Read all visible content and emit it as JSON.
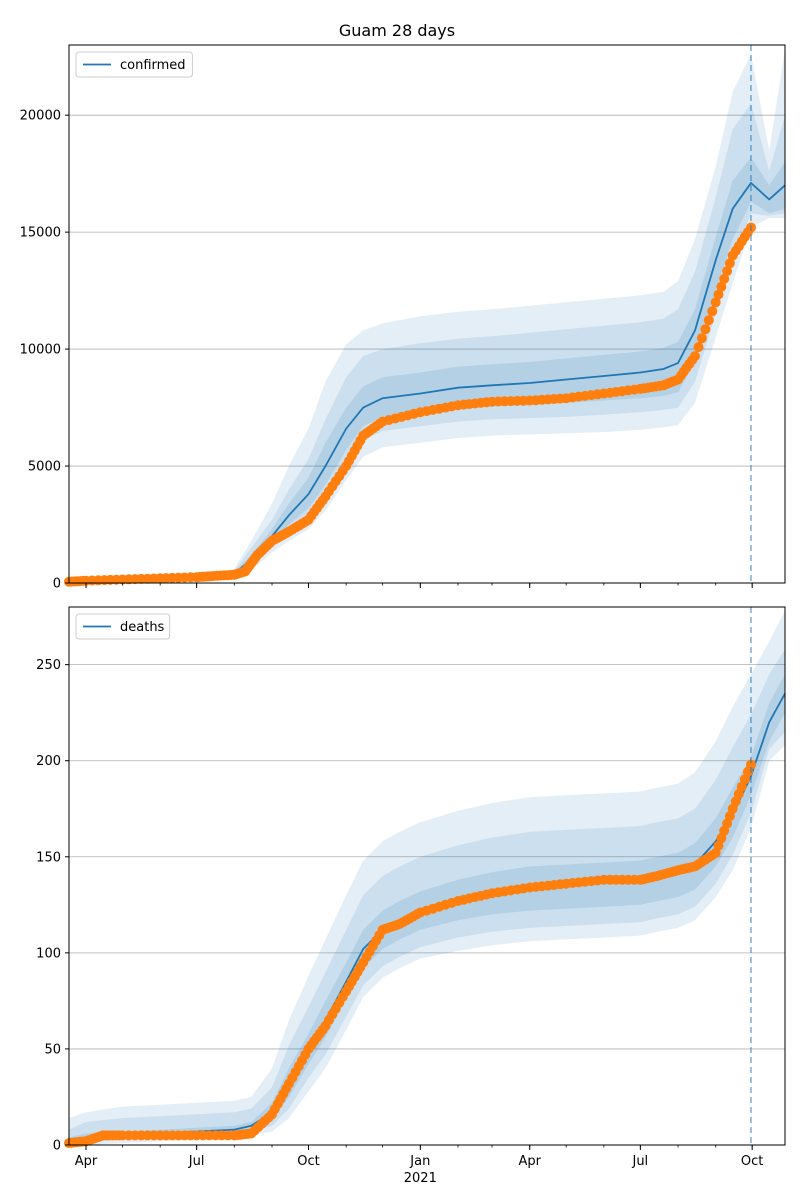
{
  "title": "Guam 28 days",
  "chart_data": [
    {
      "type": "line",
      "panel": "top",
      "title": "Guam 28 days",
      "xlabel": "",
      "ylabel": "",
      "x_tick_labels": [
        "Apr",
        "Jul",
        "Oct",
        "Jan",
        "Apr",
        "Jul",
        "Oct"
      ],
      "x_tick_dates": [
        "2020-04-01",
        "2020-07-01",
        "2020-10-01",
        "2021-01-01",
        "2021-04-01",
        "2021-07-01",
        "2021-10-01"
      ],
      "x_year_label": "2021",
      "xlim": [
        "2020-03-18",
        "2021-10-28"
      ],
      "ylim": [
        0,
        23000
      ],
      "y_ticks": [
        0,
        5000,
        10000,
        15000,
        20000
      ],
      "grid": "y",
      "legend": {
        "position": "top-left",
        "entries": [
          "confirmed"
        ]
      },
      "forecast_start": "2021-09-30",
      "colors": {
        "model": "#1f77b4",
        "observed": "#ff7f0e"
      },
      "model_series": {
        "name": "confirmed",
        "x": [
          "2020-03-18",
          "2020-05-01",
          "2020-07-01",
          "2020-08-01",
          "2020-08-15",
          "2020-09-01",
          "2020-09-15",
          "2020-10-01",
          "2020-10-15",
          "2020-11-01",
          "2020-11-15",
          "2020-12-01",
          "2021-01-01",
          "2021-02-01",
          "2021-03-01",
          "2021-04-01",
          "2021-05-01",
          "2021-06-01",
          "2021-07-01",
          "2021-07-20",
          "2021-08-01",
          "2021-08-15",
          "2021-09-01",
          "2021-09-15",
          "2021-09-30",
          "2021-10-15",
          "2021-10-28"
        ],
        "y": [
          50,
          150,
          250,
          400,
          1000,
          2000,
          2900,
          3800,
          5000,
          6600,
          7500,
          7900,
          8100,
          8350,
          8450,
          8550,
          8700,
          8850,
          9000,
          9150,
          9400,
          10800,
          13800,
          16000,
          17100,
          16400,
          17000
        ],
        "band_inner": {
          "lower": [
            30,
            120,
            220,
            350,
            850,
            1800,
            2500,
            3200,
            4200,
            5700,
            6700,
            7100,
            7200,
            7450,
            7550,
            7600,
            7700,
            7800,
            7900,
            8000,
            8150,
            9500,
            12500,
            14700,
            16300,
            15800,
            16000
          ],
          "upper": [
            70,
            180,
            290,
            460,
            1200,
            2300,
            3400,
            4500,
            6000,
            7500,
            8400,
            8800,
            9000,
            9250,
            9350,
            9450,
            9600,
            9750,
            9900,
            10050,
            10300,
            11700,
            14800,
            17200,
            18200,
            17000,
            18000
          ]
        },
        "band_mid": {
          "lower": [
            20,
            100,
            200,
            300,
            700,
            1500,
            2100,
            2700,
            3600,
            5000,
            6100,
            6500,
            6700,
            6900,
            7000,
            7050,
            7100,
            7200,
            7300,
            7400,
            7500,
            8600,
            11500,
            13800,
            15800,
            15700,
            15800
          ],
          "upper": [
            90,
            210,
            330,
            520,
            1500,
            2700,
            4000,
            5300,
            7000,
            8800,
            9700,
            10000,
            10250,
            10450,
            10550,
            10700,
            10850,
            11000,
            11150,
            11300,
            11700,
            13300,
            16500,
            19400,
            20500,
            17600,
            20000
          ]
        },
        "band_outer": {
          "lower": [
            10,
            80,
            170,
            250,
            550,
            1300,
            1800,
            2300,
            3100,
            4400,
            5400,
            5800,
            6000,
            6200,
            6300,
            6350,
            6400,
            6450,
            6550,
            6650,
            6750,
            7700,
            10500,
            12800,
            15200,
            15600,
            15600
          ],
          "upper": [
            110,
            250,
            380,
            600,
            1800,
            3400,
            5000,
            6600,
            8600,
            10200,
            10800,
            11100,
            11400,
            11600,
            11700,
            11850,
            12000,
            12150,
            12300,
            12450,
            12900,
            14700,
            17800,
            21000,
            22600,
            18500,
            22800
          ]
        }
      },
      "observed_series": {
        "name": "observed",
        "x": [
          "2020-03-18",
          "2020-04-01",
          "2020-05-01",
          "2020-06-01",
          "2020-07-01",
          "2020-07-15",
          "2020-08-01",
          "2020-08-10",
          "2020-08-20",
          "2020-09-01",
          "2020-09-15",
          "2020-10-01",
          "2020-10-15",
          "2020-11-01",
          "2020-11-15",
          "2020-12-01",
          "2021-01-01",
          "2021-02-01",
          "2021-03-01",
          "2021-04-01",
          "2021-05-01",
          "2021-06-01",
          "2021-07-01",
          "2021-07-20",
          "2021-08-01",
          "2021-08-15",
          "2021-09-01",
          "2021-09-15",
          "2021-09-30"
        ],
        "y": [
          50,
          100,
          150,
          200,
          250,
          300,
          350,
          500,
          1200,
          1800,
          2200,
          2700,
          3700,
          5000,
          6300,
          6900,
          7300,
          7600,
          7750,
          7800,
          7900,
          8100,
          8300,
          8450,
          8700,
          9700,
          12000,
          14000,
          15200
        ]
      }
    },
    {
      "type": "line",
      "panel": "bottom",
      "title": "",
      "xlabel": "",
      "ylabel": "",
      "x_tick_labels": [
        "Apr",
        "Jul",
        "Oct",
        "Jan",
        "Apr",
        "Jul",
        "Oct"
      ],
      "x_tick_dates": [
        "2020-04-01",
        "2020-07-01",
        "2020-10-01",
        "2021-01-01",
        "2021-04-01",
        "2021-07-01",
        "2021-10-01"
      ],
      "x_year_label": "2021",
      "xlim": [
        "2020-03-18",
        "2021-10-28"
      ],
      "ylim": [
        0,
        280
      ],
      "y_ticks": [
        0,
        50,
        100,
        150,
        200,
        250
      ],
      "grid": "y",
      "legend": {
        "position": "top-left",
        "entries": [
          "deaths"
        ]
      },
      "forecast_start": "2021-09-30",
      "colors": {
        "model": "#1f77b4",
        "observed": "#ff7f0e"
      },
      "model_series": {
        "name": "deaths",
        "x": [
          "2020-03-18",
          "2020-04-01",
          "2020-05-01",
          "2020-06-01",
          "2020-07-01",
          "2020-08-01",
          "2020-08-15",
          "2020-09-01",
          "2020-09-15",
          "2020-10-01",
          "2020-10-15",
          "2020-11-01",
          "2020-11-15",
          "2020-12-01",
          "2020-12-15",
          "2021-01-01",
          "2021-02-01",
          "2021-03-01",
          "2021-04-01",
          "2021-05-01",
          "2021-06-01",
          "2021-07-01",
          "2021-07-15",
          "2021-08-01",
          "2021-08-15",
          "2021-09-01",
          "2021-09-15",
          "2021-09-30",
          "2021-10-15",
          "2021-10-28"
        ],
        "y": [
          2,
          3,
          5,
          6,
          7,
          8,
          10,
          17,
          32,
          50,
          65,
          85,
          102,
          112,
          117,
          122,
          128,
          132,
          135,
          136,
          137,
          138,
          140,
          142,
          146,
          158,
          172,
          192,
          220,
          235
        ],
        "band_inner": {
          "lower": [
            1,
            2,
            4,
            5,
            6,
            7,
            8,
            13,
            25,
            42,
            56,
            76,
            92,
            102,
            107,
            112,
            117,
            120,
            122,
            123,
            124,
            125,
            127,
            129,
            133,
            145,
            160,
            182,
            210,
            225
          ],
          "upper": [
            4,
            6,
            7,
            8,
            9,
            10,
            12,
            22,
            40,
            58,
            75,
            95,
            112,
            122,
            127,
            132,
            138,
            142,
            145,
            146,
            147,
            148,
            150,
            152,
            157,
            170,
            186,
            202,
            230,
            245
          ]
        },
        "band_mid": {
          "lower": [
            0,
            1,
            3,
            4,
            5,
            6,
            7,
            10,
            19,
            35,
            47,
            67,
            83,
            93,
            98,
            103,
            108,
            111,
            113,
            114,
            115,
            116,
            118,
            120,
            124,
            136,
            151,
            173,
            206,
            215
          ],
          "upper": [
            8,
            12,
            14,
            15,
            16,
            17,
            19,
            30,
            52,
            72,
            90,
            112,
            130,
            140,
            145,
            150,
            156,
            160,
            163,
            164,
            165,
            166,
            168,
            170,
            175,
            190,
            207,
            224,
            245,
            258
          ]
        },
        "band_outer": {
          "lower": [
            0,
            0,
            1,
            2,
            3,
            4,
            5,
            7,
            14,
            28,
            40,
            60,
            77,
            87,
            92,
            97,
            101,
            104,
            106,
            107,
            108,
            109,
            111,
            113,
            117,
            129,
            143,
            165,
            200,
            208
          ],
          "upper": [
            14,
            17,
            20,
            21,
            22,
            23,
            25,
            40,
            65,
            88,
            107,
            130,
            148,
            158,
            163,
            168,
            174,
            178,
            181,
            182,
            183,
            184,
            186,
            188,
            194,
            210,
            228,
            245,
            262,
            278
          ]
        }
      },
      "observed_series": {
        "name": "observed",
        "x": [
          "2020-03-18",
          "2020-04-01",
          "2020-04-15",
          "2020-05-01",
          "2020-06-01",
          "2020-07-01",
          "2020-08-01",
          "2020-08-15",
          "2020-09-01",
          "2020-09-15",
          "2020-10-01",
          "2020-10-15",
          "2020-11-01",
          "2020-11-15",
          "2020-12-01",
          "2020-12-15",
          "2021-01-01",
          "2021-02-01",
          "2021-03-01",
          "2021-04-01",
          "2021-05-01",
          "2021-06-01",
          "2021-07-01",
          "2021-07-15",
          "2021-08-01",
          "2021-08-15",
          "2021-09-01",
          "2021-09-15",
          "2021-09-30"
        ],
        "y": [
          1,
          2,
          5,
          5,
          5,
          5,
          5,
          6,
          16,
          32,
          50,
          62,
          80,
          95,
          112,
          115,
          121,
          127,
          131,
          134,
          136,
          138,
          138,
          140,
          143,
          145,
          152,
          175,
          198
        ]
      }
    }
  ]
}
